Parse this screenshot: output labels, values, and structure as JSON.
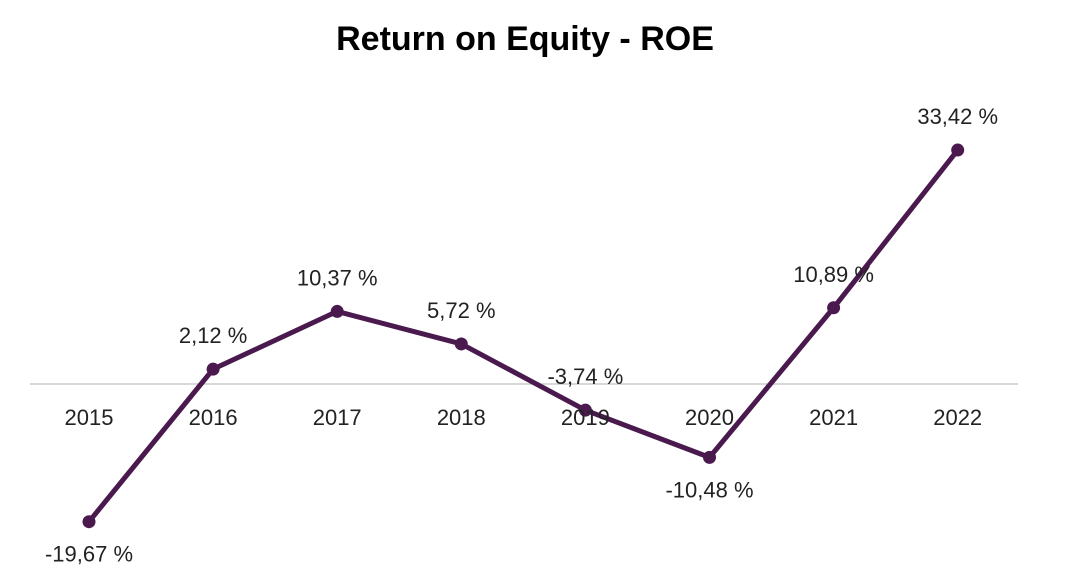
{
  "chart_data": {
    "type": "line",
    "title": "Return on Equity - ROE",
    "categories": [
      "2015",
      "2016",
      "2017",
      "2018",
      "2019",
      "2020",
      "2021",
      "2022"
    ],
    "values": [
      -19.67,
      2.12,
      10.37,
      5.72,
      -3.74,
      -10.48,
      10.89,
      33.42
    ],
    "value_labels": [
      "-19,67 %",
      "2,12 %",
      "10,37 %",
      "5,72 %",
      "-3,74 %",
      "-10,48 %",
      "10,89 %",
      "33,42 %"
    ],
    "xlabel": "",
    "ylabel": "",
    "ylim": [
      -22,
      36
    ],
    "grid": false,
    "series_color": "#4a1a4f",
    "axis_color": "#cccccc"
  }
}
